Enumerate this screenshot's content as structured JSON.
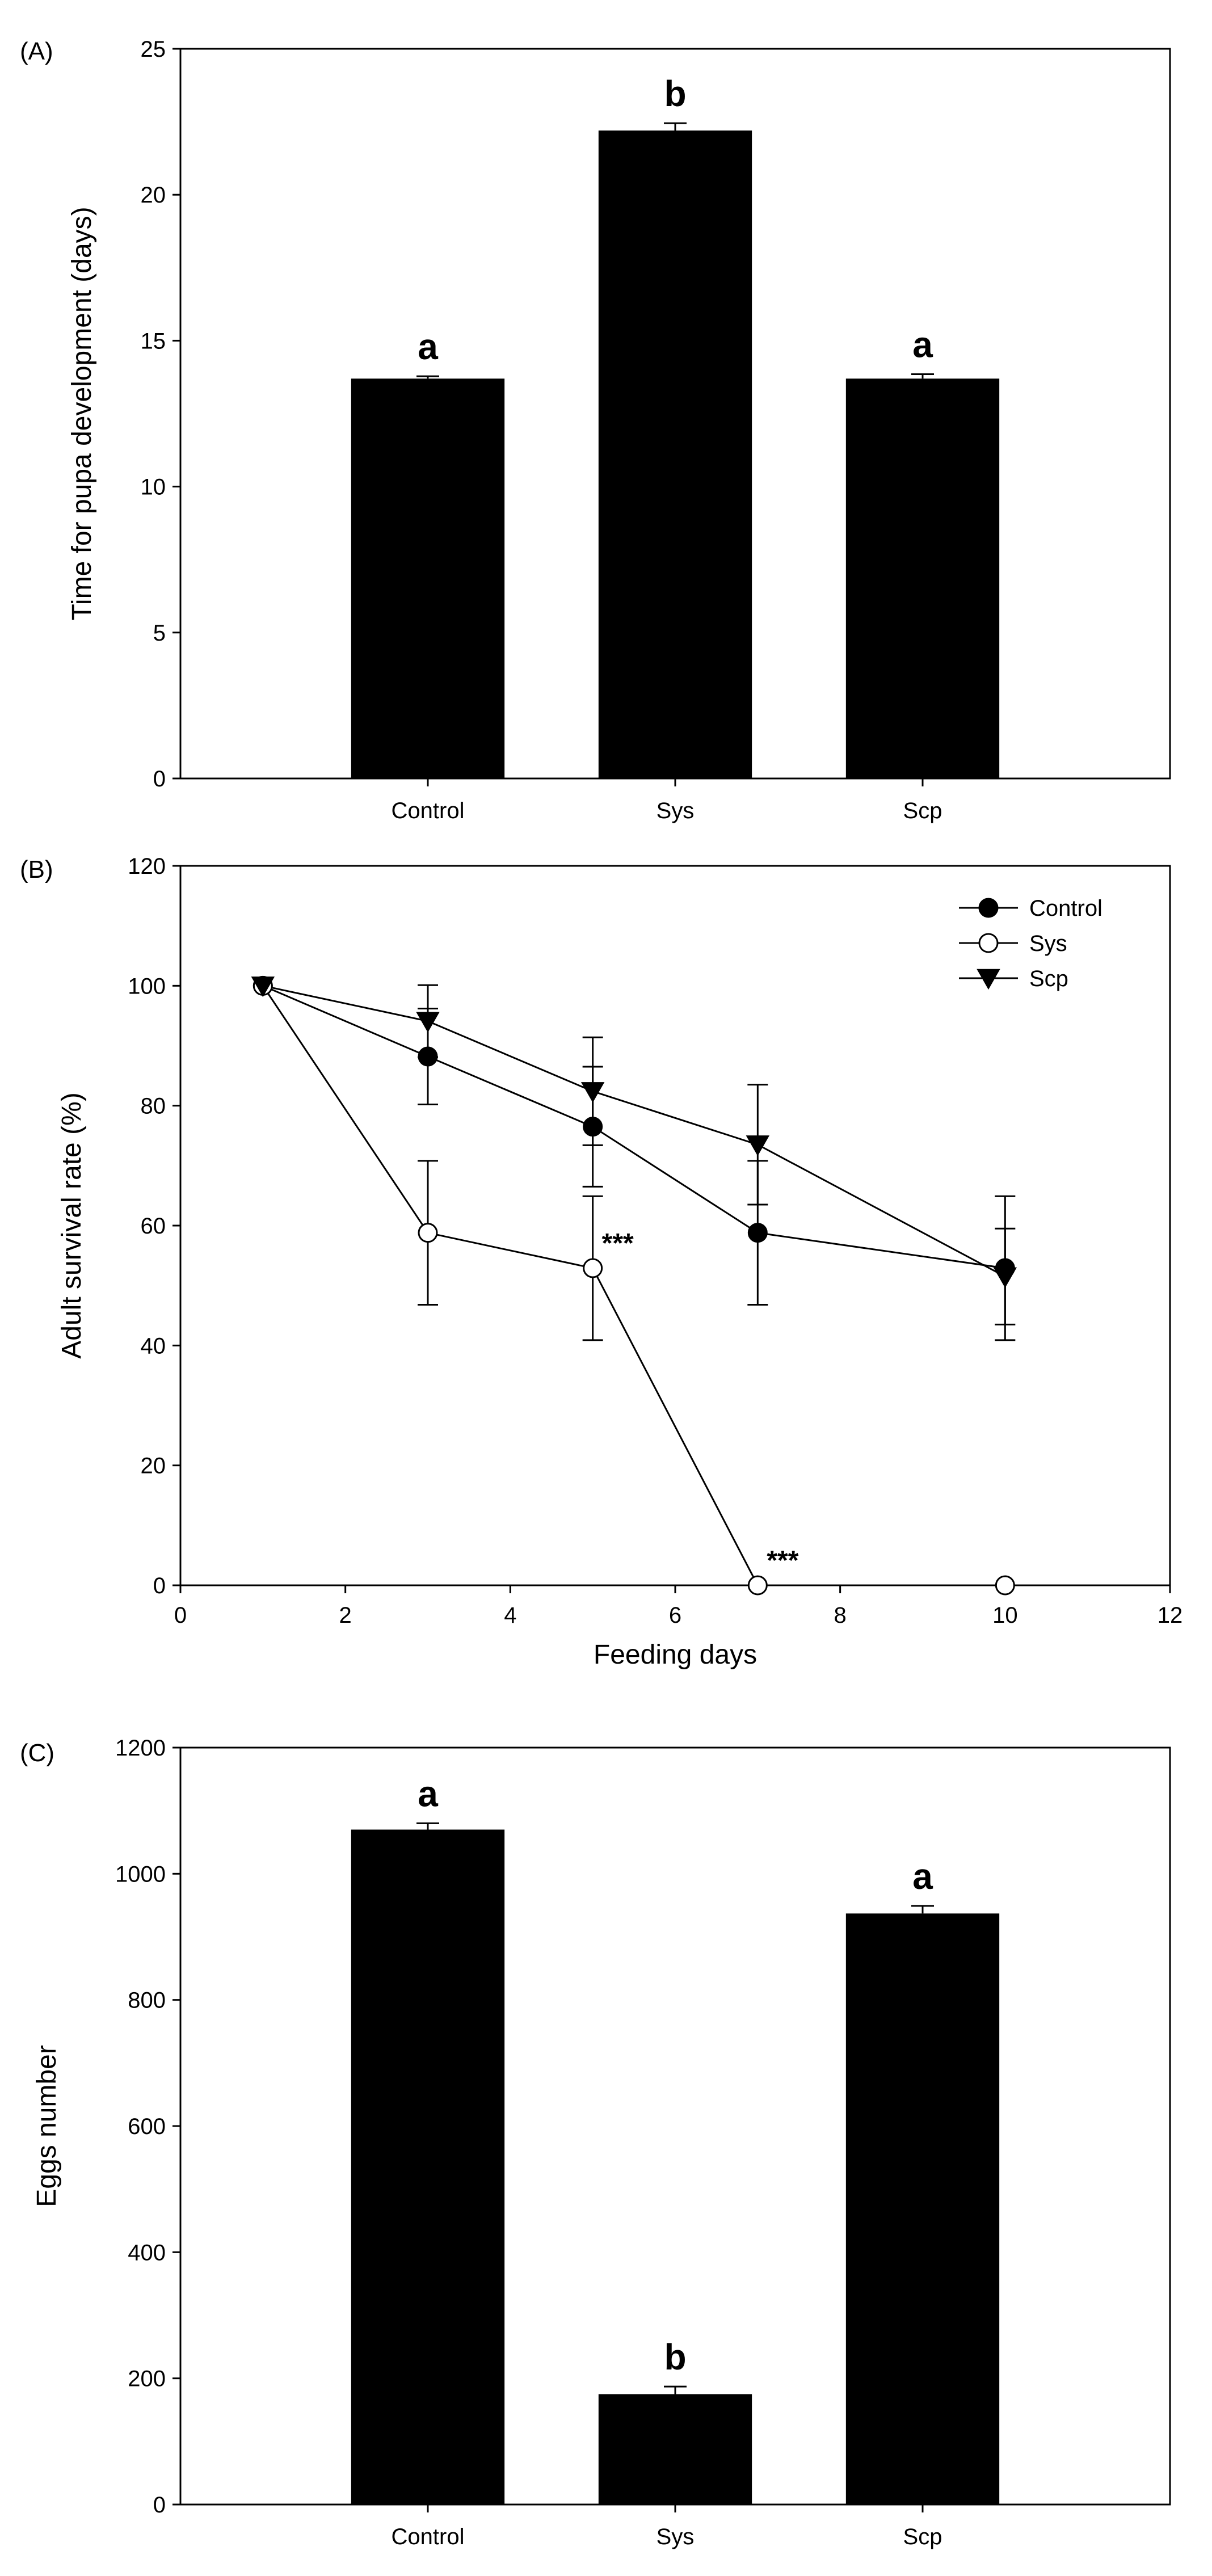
{
  "chart_data": [
    {
      "panel": "(A)",
      "type": "bar",
      "categories": [
        "Control",
        "Sys",
        "Scp"
      ],
      "values": [
        13.7,
        22.2,
        13.7
      ],
      "errors": [
        0.08,
        0.25,
        0.15
      ],
      "significance": [
        "a",
        "b",
        "a"
      ],
      "xlabel": "",
      "ylabel": "Time for pupa development (days)",
      "ylim": [
        0,
        25
      ],
      "yticks": [
        "0",
        "5",
        "10",
        "15",
        "20",
        "25"
      ],
      "color": "#000000"
    },
    {
      "panel": "(B)",
      "type": "line",
      "xlabel": "Feeding days",
      "ylabel": "Adult survival rate (%)",
      "xlim": [
        0,
        12
      ],
      "ylim": [
        0,
        120
      ],
      "xticks": [
        "0",
        "2",
        "4",
        "6",
        "8",
        "10",
        "12"
      ],
      "yticks": [
        "0",
        "20",
        "40",
        "60",
        "80",
        "100",
        "120"
      ],
      "legend_position": "top-right",
      "series": [
        {
          "name": "Control",
          "marker": "filled-circle",
          "x": [
            1,
            3,
            5,
            7,
            10
          ],
          "y": [
            100,
            88.2,
            76.5,
            58.8,
            52.9
          ],
          "err": [
            0,
            8,
            10,
            12,
            12
          ]
        },
        {
          "name": "Sys",
          "marker": "open-circle",
          "x": [
            1,
            3,
            5,
            7,
            10
          ],
          "y": [
            100,
            58.8,
            52.9,
            0,
            0
          ],
          "err": [
            0,
            12,
            12,
            0,
            0
          ]
        },
        {
          "name": "Scp",
          "marker": "filled-triangle-down",
          "x": [
            1,
            3,
            5,
            7,
            10
          ],
          "y": [
            100,
            94.1,
            82.4,
            73.5,
            51.5
          ],
          "err": [
            0,
            6,
            9,
            10,
            8
          ]
        }
      ],
      "annotations": [
        {
          "text": "***",
          "x": 5,
          "y": 52.9
        },
        {
          "text": "***",
          "x": 7,
          "y": 0
        }
      ]
    },
    {
      "panel": "(C)",
      "type": "bar",
      "categories": [
        "Control",
        "Sys",
        "Scp"
      ],
      "values": [
        1070,
        175,
        937
      ],
      "errors": [
        10,
        12,
        12
      ],
      "significance": [
        "a",
        "b",
        "a"
      ],
      "xlabel": "",
      "ylabel": "Eggs number",
      "ylim": [
        0,
        1200
      ],
      "yticks": [
        "0",
        "200",
        "400",
        "600",
        "800",
        "1000",
        "1200"
      ],
      "color": "#000000"
    }
  ]
}
